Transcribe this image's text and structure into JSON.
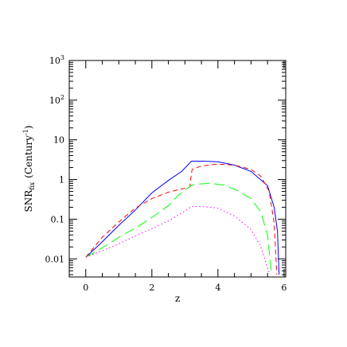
{
  "chart_data": {
    "type": "line",
    "xlabel": "z",
    "ylabel": "SNR",
    "ylabel_sub": "fix",
    "ylabel_unit": "(Century",
    "ylabel_unit_sup": "-1",
    "ylabel_unit_close": ")",
    "xlim": [
      -0.5,
      6.05
    ],
    "ylim": [
      0.0035,
      1000
    ],
    "yscale": "log",
    "grid": false,
    "x_ticks": [
      {
        "value": 0,
        "label": "0"
      },
      {
        "value": 2,
        "label": "2"
      },
      {
        "value": 4,
        "label": "4"
      },
      {
        "value": 6,
        "label": "6"
      }
    ],
    "y_ticks": [
      {
        "value": 0.01,
        "label": "0.01"
      },
      {
        "value": 0.1,
        "label": "0.1"
      },
      {
        "value": 1,
        "label": "1"
      },
      {
        "value": 10,
        "label": "10"
      },
      {
        "value": 100,
        "label": "10",
        "sup": "2"
      },
      {
        "value": 1000,
        "label": "10",
        "sup": "3"
      }
    ],
    "series": [
      {
        "color": "#0000ff",
        "dash": "solid",
        "points": [
          [
            0,
            0.011
          ],
          [
            0.5,
            0.027
          ],
          [
            1,
            0.07
          ],
          [
            1.5,
            0.17
          ],
          [
            2,
            0.46
          ],
          [
            2.5,
            0.95
          ],
          [
            2.9,
            1.6
          ],
          [
            3.2,
            2.9
          ],
          [
            3.5,
            2.9
          ],
          [
            4,
            2.8
          ],
          [
            4.5,
            2.3
          ],
          [
            5,
            1.6
          ],
          [
            5.5,
            0.7
          ],
          [
            5.7,
            0.2
          ],
          [
            5.8,
            0.05
          ],
          [
            5.85,
            0.004
          ]
        ]
      },
      {
        "color": "#ff0000",
        "dash": "6,4",
        "points": [
          [
            0,
            0.011
          ],
          [
            0.5,
            0.035
          ],
          [
            1,
            0.085
          ],
          [
            1.5,
            0.19
          ],
          [
            2,
            0.33
          ],
          [
            2.5,
            0.48
          ],
          [
            3.15,
            0.65
          ],
          [
            3.2,
            1.5
          ],
          [
            3.22,
            1.8
          ],
          [
            3.5,
            2.2
          ],
          [
            4,
            2.45
          ],
          [
            4.5,
            2.3
          ],
          [
            5,
            1.8
          ],
          [
            5.3,
            1.2
          ],
          [
            5.55,
            0.5
          ],
          [
            5.7,
            0.08
          ],
          [
            5.78,
            0.004
          ]
        ]
      },
      {
        "color": "#00ff00",
        "dash": "13,6",
        "points": [
          [
            0,
            0.011
          ],
          [
            0.5,
            0.019
          ],
          [
            1,
            0.035
          ],
          [
            1.5,
            0.06
          ],
          [
            2,
            0.11
          ],
          [
            2.5,
            0.22
          ],
          [
            2.8,
            0.4
          ],
          [
            3.2,
            0.72
          ],
          [
            3.5,
            0.78
          ],
          [
            3.8,
            0.8
          ],
          [
            4.2,
            0.72
          ],
          [
            4.6,
            0.52
          ],
          [
            5,
            0.33
          ],
          [
            5.3,
            0.15
          ],
          [
            5.5,
            0.04
          ],
          [
            5.62,
            0.004
          ]
        ]
      },
      {
        "color": "#ff00ff",
        "dash": "1.5,3",
        "points": [
          [
            0,
            0.011
          ],
          [
            0.5,
            0.016
          ],
          [
            1,
            0.024
          ],
          [
            1.5,
            0.038
          ],
          [
            2,
            0.058
          ],
          [
            2.5,
            0.09
          ],
          [
            3,
            0.16
          ],
          [
            3.2,
            0.21
          ],
          [
            3.5,
            0.21
          ],
          [
            4,
            0.19
          ],
          [
            4.5,
            0.12
          ],
          [
            5,
            0.055
          ],
          [
            5.3,
            0.02
          ],
          [
            5.5,
            0.006
          ],
          [
            5.58,
            0.004
          ]
        ]
      }
    ]
  }
}
